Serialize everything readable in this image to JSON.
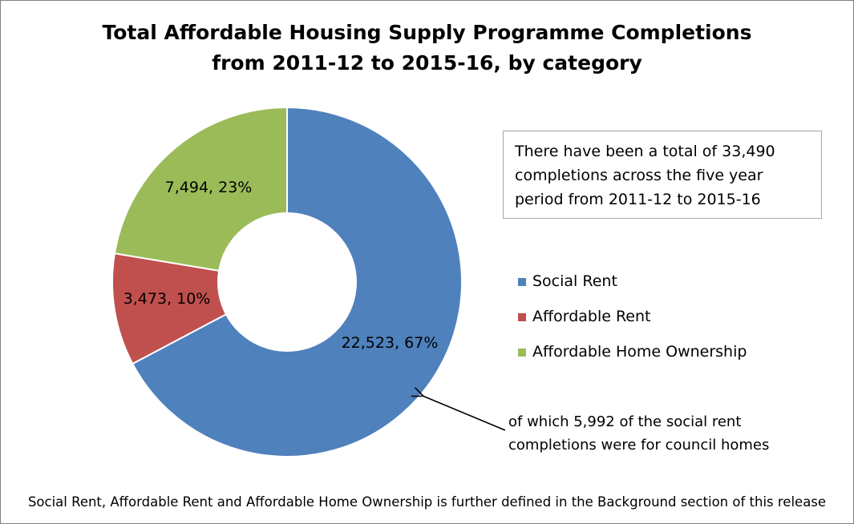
{
  "chart_data": {
    "type": "pie",
    "title": [
      "Total Affordable Housing Supply Programme Completions",
      "from 2011-12 to 2015-16, by category"
    ],
    "series": [
      {
        "name": "Social Rent",
        "value": 22523,
        "percent": 67,
        "label": "22,523, 67%",
        "color": "#4f81bd"
      },
      {
        "name": "Affordable Rent",
        "value": 3473,
        "percent": 10,
        "label": "3,473, 10%",
        "color": "#c0504d"
      },
      {
        "name": "Affordable Home Ownership",
        "value": 7494,
        "percent": 23,
        "label": "7,494, 23%",
        "color": "#9bbb59"
      }
    ],
    "legend_position": "right",
    "annotations": {
      "total_box": [
        "There have been a total of 33,490",
        "completions across the five year",
        "period from 2011-12 to 2015-16"
      ],
      "arrow_note": [
        "of which 5,992 of the social rent",
        "completions were for council homes"
      ],
      "footer": "Social Rent, Affordable Rent and Affordable Home Ownership is further defined in the Background section of this release"
    }
  }
}
